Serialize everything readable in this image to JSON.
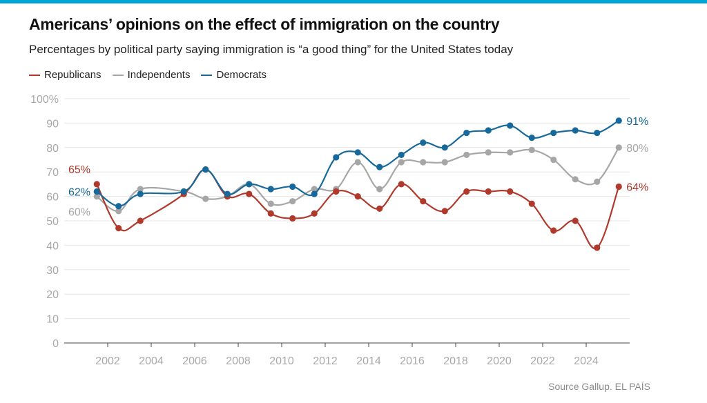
{
  "header": {
    "title": "Americans’ opinions on the effect of immigration on the country",
    "subtitle": "Percentages by political party saying immigration is “a good thing” for the United States today"
  },
  "source": "Source Gallup. EL PAÍS",
  "colors": {
    "republicans": "#b0392b",
    "independents": "#a6a6a6",
    "democrats": "#16699a",
    "grid": "#e6e6e6",
    "axis": "#444444",
    "tick_text": "#a8a8a8",
    "accent_bar": "#00a3d6"
  },
  "chart_data": {
    "type": "line",
    "xlim": [
      2000,
      2026
    ],
    "ylim": [
      0,
      100
    ],
    "x_ticks": [
      "2002",
      "2004",
      "2006",
      "2008",
      "2010",
      "2012",
      "2014",
      "2016",
      "2018",
      "2020",
      "2022",
      "2024"
    ],
    "y_ticks": [
      "0",
      "10",
      "20",
      "30",
      "40",
      "50",
      "60",
      "70",
      "80",
      "90",
      "100%"
    ],
    "grid": "horizontal",
    "legend_position": "top-left",
    "x": [
      2001.5,
      2002.5,
      2003.5,
      2005.5,
      2006.5,
      2007.5,
      2008.5,
      2009.5,
      2010.5,
      2011.5,
      2012.5,
      2013.5,
      2014.5,
      2015.5,
      2016.5,
      2017.5,
      2018.5,
      2019.5,
      2020.5,
      2021.5,
      2022.5,
      2023.5,
      2024.5,
      2025.5
    ],
    "series": [
      {
        "name": "Republicans",
        "color": "#b0392b",
        "values": [
          65,
          47,
          50,
          61,
          71,
          60,
          61,
          53,
          51,
          53,
          62,
          60,
          55,
          65,
          58,
          54,
          62,
          62,
          62,
          57,
          46,
          50,
          39,
          64
        ],
        "start_label": "65%",
        "end_label": "64%"
      },
      {
        "name": "Independents",
        "color": "#a6a6a6",
        "values": [
          60,
          54,
          63,
          62,
          59,
          60,
          65,
          57,
          58,
          63,
          63,
          74,
          63,
          74,
          74,
          74,
          77,
          78,
          78,
          79,
          75,
          67,
          66,
          80
        ],
        "start_label": "60%",
        "end_label": "80%"
      },
      {
        "name": "Democrats",
        "color": "#16699a",
        "values": [
          62,
          56,
          61,
          62,
          71,
          61,
          65,
          63,
          64,
          61,
          76,
          78,
          72,
          77,
          82,
          80,
          86,
          87,
          89,
          84,
          86,
          87,
          86,
          91
        ],
        "start_label": "62%",
        "end_label": "91%"
      }
    ]
  }
}
